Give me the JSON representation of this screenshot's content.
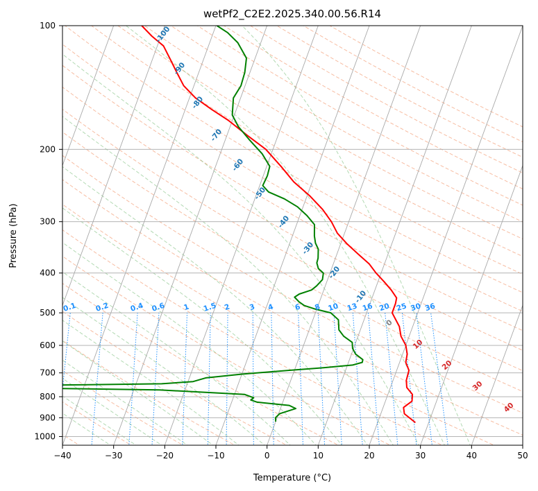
{
  "chart_data": {
    "type": "line",
    "subtype": "skew-T log-P diagram",
    "title": "wetPf2_C2E2.2025.340.00.56.R14",
    "xlabel": "Temperature (°C)",
    "ylabel": "Pressure (hPa)",
    "xlim": [
      -40,
      50
    ],
    "ylim": [
      1050,
      100
    ],
    "x_ticks": [
      "−40",
      "−30",
      "−20",
      "−10",
      "0",
      "10",
      "20",
      "30",
      "40",
      "50"
    ],
    "x_tick_values": [
      -40,
      -30,
      -20,
      -10,
      0,
      10,
      20,
      30,
      40,
      50
    ],
    "y_ticks": [
      "100",
      "200",
      "300",
      "400",
      "500",
      "600",
      "700",
      "800",
      "900",
      "1000"
    ],
    "y_tick_values": [
      100,
      200,
      300,
      400,
      500,
      600,
      700,
      800,
      900,
      1000
    ],
    "grid": true,
    "series": [
      {
        "name": "Temperature",
        "color": "#ff0000",
        "points": [
          [
            925,
            27.4
          ],
          [
            880,
            24.6
          ],
          [
            850,
            24.0
          ],
          [
            820,
            25.2
          ],
          [
            790,
            24.8
          ],
          [
            760,
            23.2
          ],
          [
            730,
            22.6
          ],
          [
            690,
            22.4
          ],
          [
            660,
            21.2
          ],
          [
            630,
            20.9
          ],
          [
            600,
            20.0
          ],
          [
            570,
            18.4
          ],
          [
            540,
            17.4
          ],
          [
            500,
            15.0
          ],
          [
            475,
            15.0
          ],
          [
            460,
            14.8
          ],
          [
            440,
            13.2
          ],
          [
            420,
            11.2
          ],
          [
            400,
            9.0
          ],
          [
            380,
            7.0
          ],
          [
            360,
            4.2
          ],
          [
            340,
            1.3
          ],
          [
            320,
            -1.4
          ],
          [
            300,
            -3.4
          ],
          [
            280,
            -6.0
          ],
          [
            260,
            -9.4
          ],
          [
            240,
            -13.6
          ],
          [
            220,
            -17.2
          ],
          [
            200,
            -21.4
          ],
          [
            185,
            -26.0
          ],
          [
            170,
            -30.8
          ],
          [
            160,
            -34.8
          ],
          [
            150,
            -38.8
          ],
          [
            140,
            -42.0
          ],
          [
            130,
            -44.3
          ],
          [
            120,
            -46.7
          ],
          [
            112,
            -48.8
          ],
          [
            106,
            -51.8
          ],
          [
            100,
            -54.5
          ]
        ]
      },
      {
        "name": "Dewpoint",
        "color": "#008000",
        "points": [
          [
            920,
            0.0
          ],
          [
            900,
            -0.3
          ],
          [
            880,
            0.2
          ],
          [
            855,
            3.0
          ],
          [
            840,
            1.5
          ],
          [
            825,
            -5.0
          ],
          [
            815,
            -6.4
          ],
          [
            805,
            -6.0
          ],
          [
            790,
            -8.0
          ],
          [
            770,
            -25.0
          ],
          [
            760,
            -58.0
          ],
          [
            755,
            -61.0
          ],
          [
            752,
            -60.0
          ],
          [
            750,
            -47.0
          ],
          [
            744,
            -25.0
          ],
          [
            735,
            -19.0
          ],
          [
            720,
            -16.8
          ],
          [
            705,
            -10.0
          ],
          [
            690,
            -1.0
          ],
          [
            680,
            5.5
          ],
          [
            670,
            11.0
          ],
          [
            660,
            12.7
          ],
          [
            650,
            12.6
          ],
          [
            630,
            10.8
          ],
          [
            610,
            9.8
          ],
          [
            590,
            9.3
          ],
          [
            570,
            7.2
          ],
          [
            550,
            5.8
          ],
          [
            520,
            5.0
          ],
          [
            500,
            3.0
          ],
          [
            490,
            -0.2
          ],
          [
            480,
            -2.7
          ],
          [
            470,
            -4.0
          ],
          [
            458,
            -5.2
          ],
          [
            450,
            -4.5
          ],
          [
            440,
            -2.4
          ],
          [
            430,
            -1.7
          ],
          [
            415,
            -1.0
          ],
          [
            400,
            -1.3
          ],
          [
            390,
            -2.6
          ],
          [
            378,
            -3.3
          ],
          [
            368,
            -3.4
          ],
          [
            350,
            -4.0
          ],
          [
            338,
            -5.0
          ],
          [
            325,
            -5.7
          ],
          [
            305,
            -6.5
          ],
          [
            290,
            -8.6
          ],
          [
            276,
            -11.1
          ],
          [
            264,
            -14.2
          ],
          [
            254,
            -17.8
          ],
          [
            245,
            -19.4
          ],
          [
            232,
            -19.2
          ],
          [
            220,
            -19.4
          ],
          [
            205,
            -21.8
          ],
          [
            190,
            -25.2
          ],
          [
            176,
            -28.4
          ],
          [
            165,
            -30.4
          ],
          [
            150,
            -31.4
          ],
          [
            140,
            -30.8
          ],
          [
            130,
            -31.0
          ],
          [
            120,
            -31.7
          ],
          [
            110,
            -34.5
          ],
          [
            104,
            -37.2
          ],
          [
            100,
            -39.8
          ]
        ]
      }
    ],
    "dry_adiabat_labels": [
      "10",
      "20",
      "30",
      "40"
    ],
    "dry_adiabat_label_values": [
      10,
      20,
      30,
      40
    ],
    "freezing_label": "0",
    "saturated_adiabat_labels": [
      "-100",
      "-90",
      "-80",
      "-70",
      "-60",
      "-50",
      "-40",
      "-30",
      "-20",
      "-10"
    ],
    "saturated_adiabat_label_values": [
      -100,
      -90,
      -80,
      -70,
      -60,
      -50,
      -40,
      -30,
      -20,
      -10
    ],
    "mixing_ratio_labels": [
      "0.1",
      "0.2",
      "0.4",
      "0.6",
      "1",
      "1.5",
      "2",
      "3",
      "4",
      "6",
      "8",
      "10",
      "13",
      "16",
      "20",
      "25",
      "30",
      "36"
    ],
    "mixing_ratio_values": [
      0.1,
      0.2,
      0.4,
      0.6,
      1,
      1.5,
      2,
      3,
      4,
      6,
      8,
      10,
      13,
      16,
      20,
      25,
      30,
      36
    ],
    "mixing_ratio_label_pressure": 500
  }
}
